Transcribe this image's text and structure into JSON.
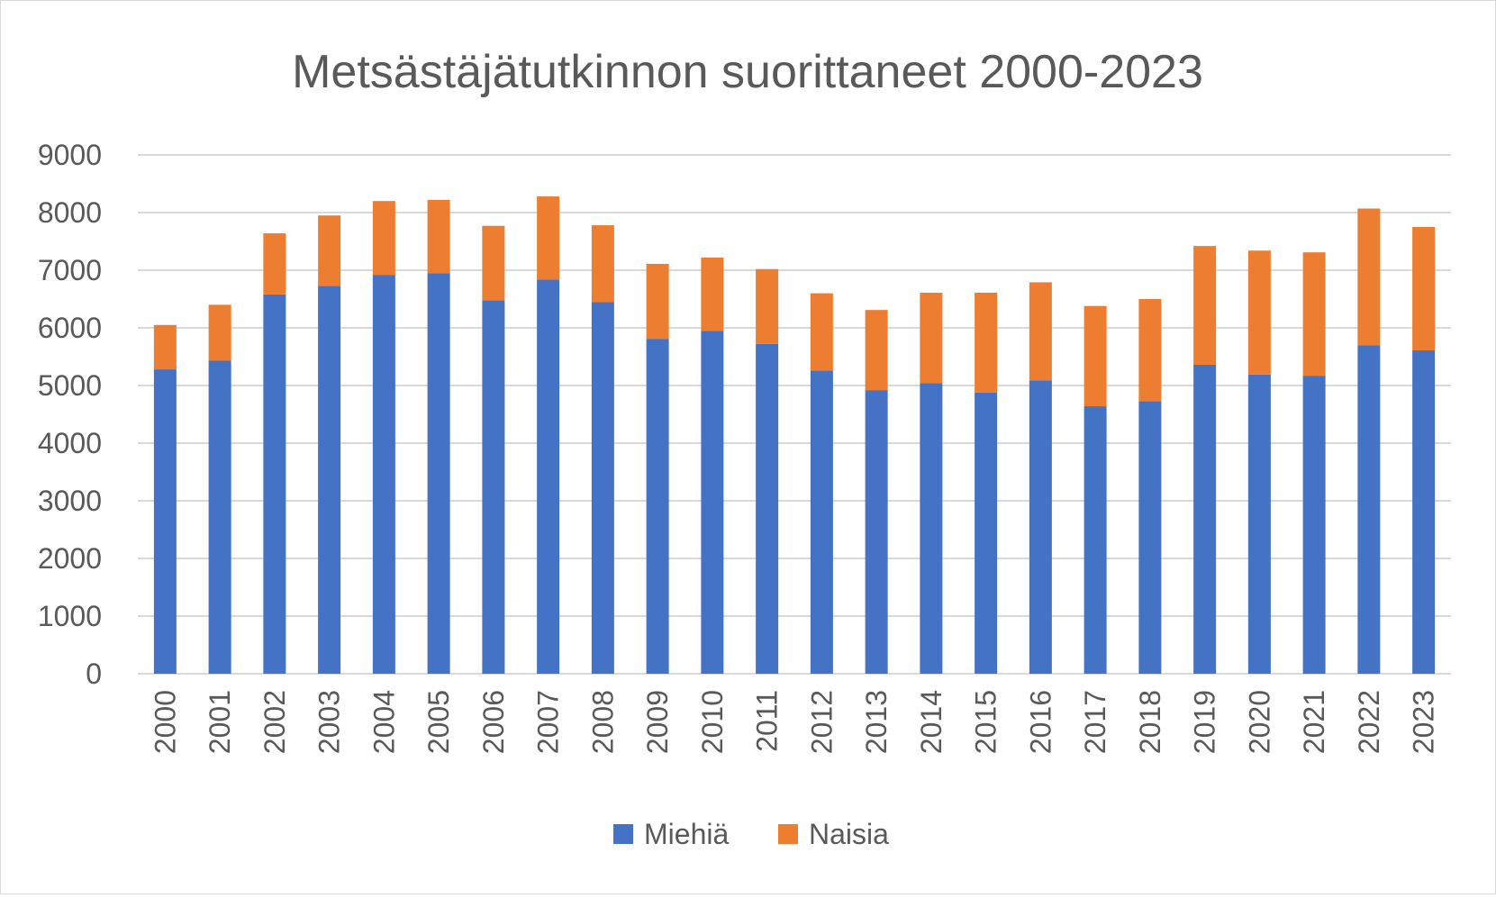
{
  "colors": {
    "miehia": "#4472c4",
    "naisia": "#ed7d31",
    "grid": "#d9d9d9",
    "text": "#595959"
  },
  "chart_data": {
    "type": "bar",
    "stacked": true,
    "title": "Metsästäjätutkinnon suorittaneet 2000-2023",
    "xlabel": "",
    "ylabel": "",
    "ylim": [
      0,
      9000
    ],
    "yticks": [
      0,
      1000,
      2000,
      3000,
      4000,
      5000,
      6000,
      7000,
      8000,
      9000
    ],
    "grid": true,
    "legend_position": "bottom",
    "categories": [
      "2000",
      "2001",
      "2002",
      "2003",
      "2004",
      "2005",
      "2006",
      "2007",
      "2008",
      "2009",
      "2010",
      "2011",
      "2012",
      "2013",
      "2014",
      "2015",
      "2016",
      "2017",
      "2018",
      "2019",
      "2020",
      "2021",
      "2022",
      "2023"
    ],
    "series": [
      {
        "name": "Miehiä",
        "color": "#4472c4",
        "values": [
          5280,
          5430,
          6580,
          6730,
          6920,
          6950,
          6480,
          6840,
          6450,
          5810,
          5950,
          5720,
          5260,
          4920,
          5040,
          4880,
          5090,
          4640,
          4730,
          5360,
          5190,
          5170,
          5700,
          5610
        ]
      },
      {
        "name": "Naisia",
        "color": "#ed7d31",
        "values": [
          770,
          970,
          1060,
          1220,
          1280,
          1270,
          1290,
          1440,
          1330,
          1300,
          1270,
          1300,
          1340,
          1390,
          1570,
          1730,
          1700,
          1740,
          1770,
          2060,
          2150,
          2140,
          2370,
          2140
        ]
      }
    ]
  }
}
